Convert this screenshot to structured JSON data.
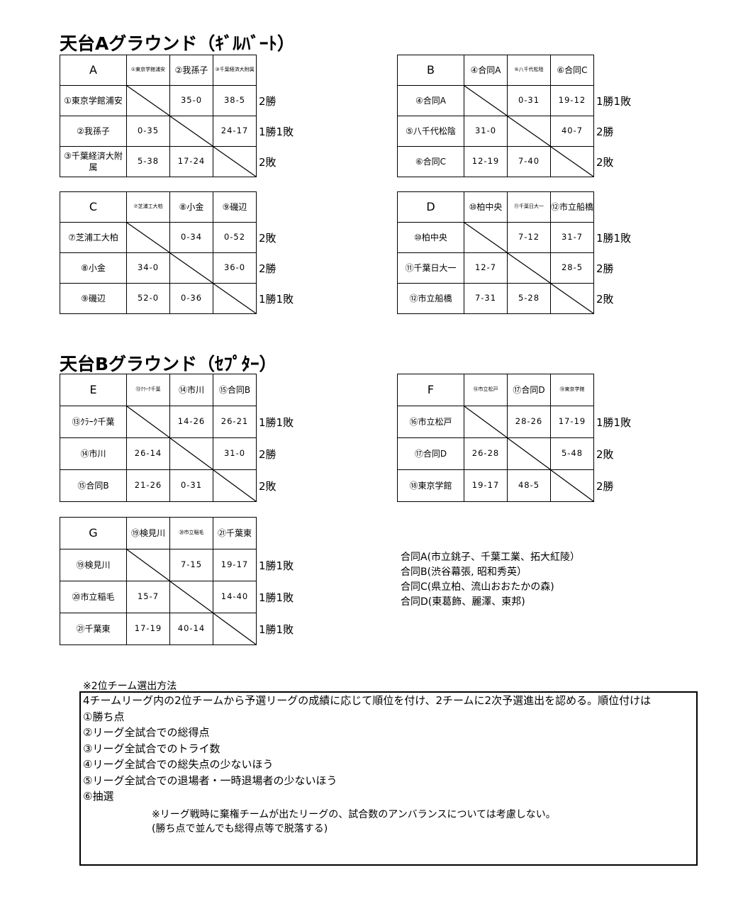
{
  "sections": [
    {
      "title": "天台Aグラウンド（ｷﾞﾙﾊﾞｰﾄ）"
    },
    {
      "title": "天台Bグラウンド（ｾﾌﾟﾀｰ）"
    }
  ],
  "leagues": [
    {
      "label": "A",
      "teams": [
        "①東京学館浦安",
        "②我孫子",
        "③千葉経済大附属"
      ],
      "header_small": [
        true,
        false,
        true
      ],
      "row_labels": [
        "①東京学館浦安",
        "②我孫子",
        "③千葉経済大附属"
      ],
      "scores": [
        [
          "",
          "35-0",
          "38-5"
        ],
        [
          "0-35",
          "",
          "24-17"
        ],
        [
          "5-38",
          "17-24",
          ""
        ]
      ],
      "results": [
        "2勝",
        "1勝1敗",
        "2敗"
      ]
    },
    {
      "label": "B",
      "teams": [
        "④合同A",
        "⑤八千代松陰",
        "⑥合同C"
      ],
      "header_small": [
        false,
        true,
        false
      ],
      "row_labels": [
        "④合同A",
        "⑤八千代松陰",
        "⑥合同C"
      ],
      "scores": [
        [
          "",
          "0-31",
          "19-12"
        ],
        [
          "31-0",
          "",
          "40-7"
        ],
        [
          "12-19",
          "7-40",
          ""
        ]
      ],
      "results": [
        "1勝1敗",
        "2勝",
        "2敗"
      ]
    },
    {
      "label": "C",
      "teams": [
        "⑦芝浦工大柏",
        "⑧小金",
        "⑨磯辺"
      ],
      "header_small": [
        true,
        false,
        false
      ],
      "row_labels": [
        "⑦芝浦工大柏",
        "⑧小金",
        "⑨磯辺"
      ],
      "scores": [
        [
          "",
          "0-34",
          "0-52"
        ],
        [
          "34-0",
          "",
          "36-0"
        ],
        [
          "52-0",
          "0-36",
          ""
        ]
      ],
      "results": [
        "2敗",
        "2勝",
        "1勝1敗"
      ]
    },
    {
      "label": "D",
      "teams": [
        "⑩柏中央",
        "⑪千葉日大一",
        "⑫市立船橋"
      ],
      "header_small": [
        false,
        true,
        false
      ],
      "row_labels": [
        "⑩柏中央",
        "⑪千葉日大一",
        "⑫市立船橋"
      ],
      "scores": [
        [
          "",
          "7-12",
          "31-7"
        ],
        [
          "12-7",
          "",
          "28-5"
        ],
        [
          "7-31",
          "5-28",
          ""
        ]
      ],
      "results": [
        "1勝1敗",
        "2勝",
        "2敗"
      ]
    },
    {
      "label": "E",
      "teams": [
        "⑬ｸﾗｰｸ千葉",
        "⑭市川",
        "⑮合同B"
      ],
      "header_small": [
        true,
        false,
        false
      ],
      "row_labels": [
        "⑬ｸﾗｰｸ千葉",
        "⑭市川",
        "⑮合同B"
      ],
      "scores": [
        [
          "",
          "14-26",
          "26-21"
        ],
        [
          "26-14",
          "",
          "31-0"
        ],
        [
          "21-26",
          "0-31",
          ""
        ]
      ],
      "results": [
        "1勝1敗",
        "2勝",
        "2敗"
      ]
    },
    {
      "label": "F",
      "teams": [
        "⑯市立松戸",
        "⑰合同D",
        "⑱東京学館"
      ],
      "header_small": [
        true,
        false,
        true
      ],
      "row_labels": [
        "⑯市立松戸",
        "⑰合同D",
        "⑱東京学館"
      ],
      "scores": [
        [
          "",
          "28-26",
          "17-19"
        ],
        [
          "26-28",
          "",
          "5-48"
        ],
        [
          "19-17",
          "48-5",
          ""
        ]
      ],
      "results": [
        "1勝1敗",
        "2敗",
        "2勝"
      ]
    },
    {
      "label": "G",
      "teams": [
        "⑲検見川",
        "⑳市立稲毛",
        "㉑千葉東"
      ],
      "header_small": [
        false,
        true,
        false
      ],
      "row_labels": [
        "⑲検見川",
        "⑳市立稲毛",
        "㉑千葉東"
      ],
      "scores": [
        [
          "",
          "7-15",
          "19-17"
        ],
        [
          "15-7",
          "",
          "14-40"
        ],
        [
          "17-19",
          "40-14",
          ""
        ]
      ],
      "results": [
        "1勝1敗",
        "1勝1敗",
        "1勝1敗"
      ]
    }
  ],
  "joint_teams": [
    "合同A(市立銚子、千葉工業、拓大紅陵）",
    "合同B(渋谷幕張, 昭和秀英）",
    "合同C(県立柏、流山おおたかの森)",
    "合同D(東葛飾、麗澤、東邦)"
  ],
  "rules": {
    "heading": "※2位チーム選出方法",
    "intro": "4チームリーグ内の2位チームから予選リーグの成績に応じて順位を付け、2チームに2次予選進出を認める。順位付けは",
    "items": [
      "①勝ち点",
      "②リーグ全試合での総得点",
      "③リーグ全試合でのトライ数",
      "④リーグ全試合での総失点の少ないほう",
      "⑤リーグ全試合での退場者・一時退場者の少ないほう",
      "⑥抽選"
    ],
    "footnote1": "※リーグ戦時に棄権チームが出たリーグの、試合数のアンバランスについては考慮しない。",
    "footnote2": "(勝ち点で並んでも総得点等で脱落する)"
  }
}
